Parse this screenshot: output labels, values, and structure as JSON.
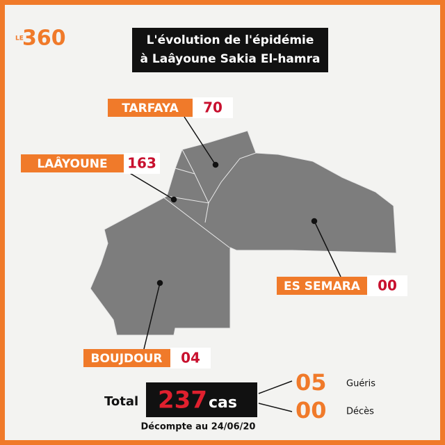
{
  "logo": {
    "prefix": "LE",
    "brand": "360"
  },
  "title": {
    "line1": "L'évolution de l'épidémie",
    "line2": "à Laâyoune Sakia El-hamra"
  },
  "regions": [
    {
      "name": "TARFAYA",
      "cases": "70"
    },
    {
      "name": "LAÂYOUNE",
      "cases": "163"
    },
    {
      "name": "ES SEMARA",
      "cases": "00"
    },
    {
      "name": "BOUJDOUR",
      "cases": "04"
    }
  ],
  "total": {
    "label": "Total",
    "cases": "237",
    "unit": "cas"
  },
  "recovered": {
    "count": "05",
    "label": "Guéris"
  },
  "deaths": {
    "count": "00",
    "label": "Décès"
  },
  "date_note": "Décompte au 24/06/20"
}
